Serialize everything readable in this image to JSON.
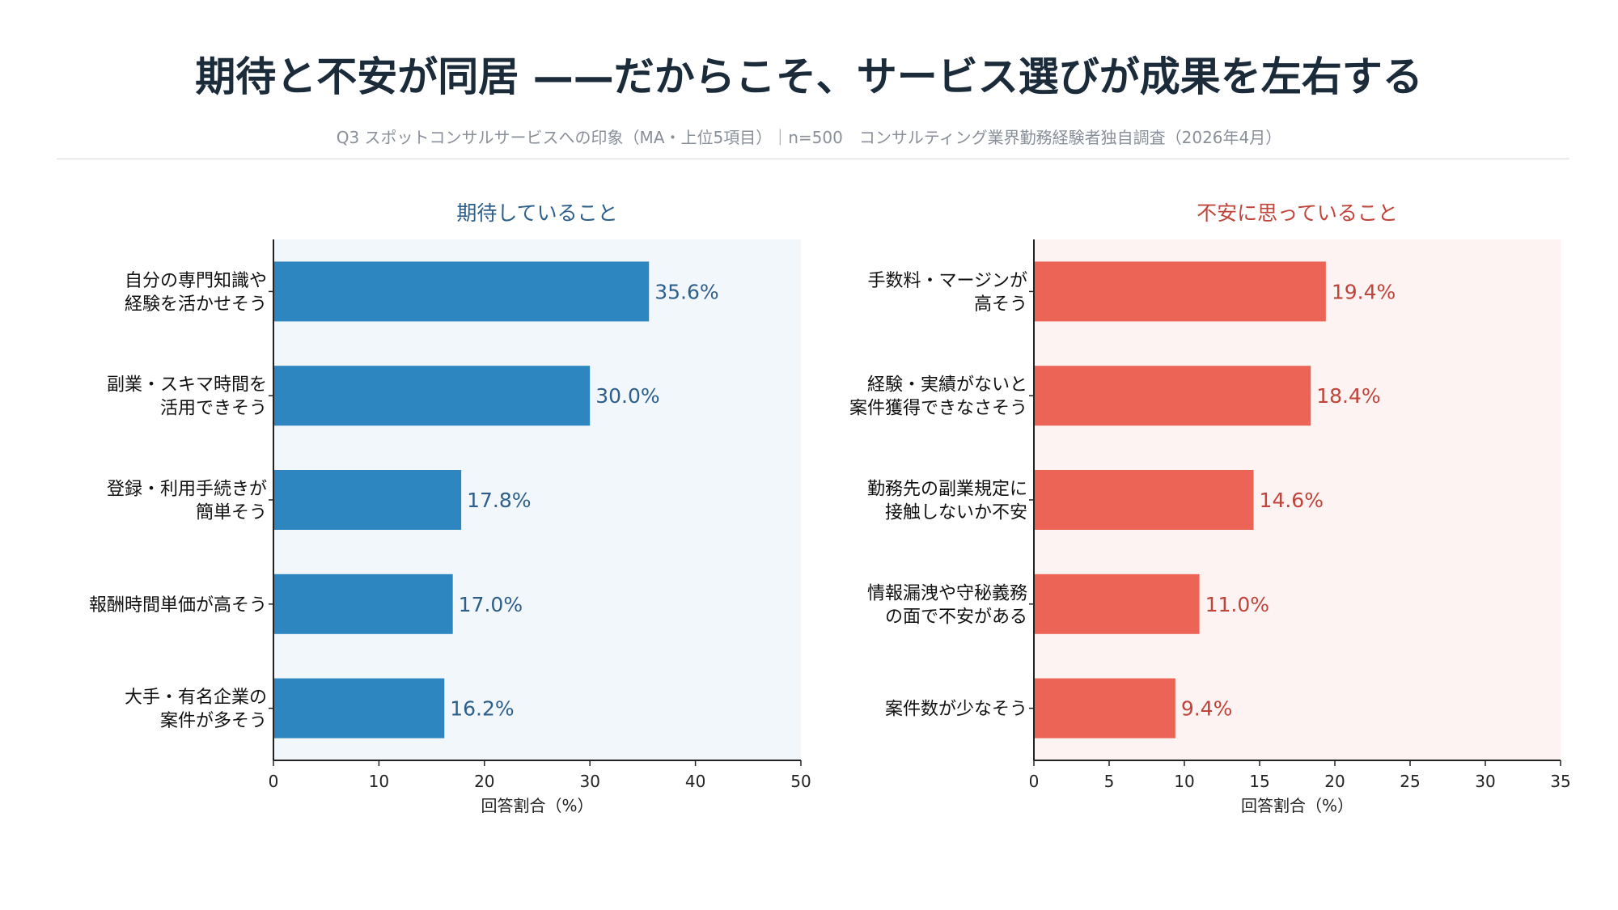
{
  "header": {
    "title": "期待と不安が同居 ——だからこそ、サービス選びが成果を左右する",
    "subtitle": "Q3 スポットコンサルサービスへの印象（MA・上位5項目）｜n=500　コンサルティング業界勤務経験者独自調査（2026年4月）"
  },
  "chart_data": [
    {
      "type": "bar",
      "orientation": "horizontal",
      "title": "期待していること",
      "categories": [
        "自分の専門知識や\n経験を活かせそう",
        "副業・スキマ時間を\n活用できそう",
        "登録・利用手続きが\n簡単そう",
        "報酬時間単価が高そう",
        "大手・有名企業の\n案件が多そう"
      ],
      "values": [
        35.6,
        30.0,
        17.8,
        17.0,
        16.2
      ],
      "data_labels": [
        "35.6%",
        "30.0%",
        "17.8%",
        "17.0%",
        "16.2%"
      ],
      "xlabel": "回答割合（%）",
      "xlim": [
        0,
        50
      ],
      "xticks": [
        0,
        10,
        20,
        30,
        40,
        50
      ],
      "grid": false,
      "colors": {
        "bar": "#2e86c1",
        "label": "#2e5f8a",
        "title": "#2e5f8a",
        "background": "#f2f7fc"
      }
    },
    {
      "type": "bar",
      "orientation": "horizontal",
      "title": "不安に思っていること",
      "categories": [
        "手数料・マージンが\n高そう",
        "経験・実績がないと\n案件獲得できなさそう",
        "勤務先の副業規定に\n接触しないか不安",
        "情報漏洩や守秘義務\nの面で不安がある",
        "案件数が少なそう"
      ],
      "values": [
        19.4,
        18.4,
        14.6,
        11.0,
        9.4
      ],
      "data_labels": [
        "19.4%",
        "18.4%",
        "14.6%",
        "11.0%",
        "9.4%"
      ],
      "xlabel": "回答割合（%）",
      "xlim": [
        0,
        35
      ],
      "xticks": [
        0,
        5,
        10,
        15,
        20,
        25,
        30,
        35
      ],
      "grid": false,
      "colors": {
        "bar": "#eb6456",
        "label": "#c0443a",
        "title": "#c0443a",
        "background": "#fdf3f2"
      }
    }
  ]
}
